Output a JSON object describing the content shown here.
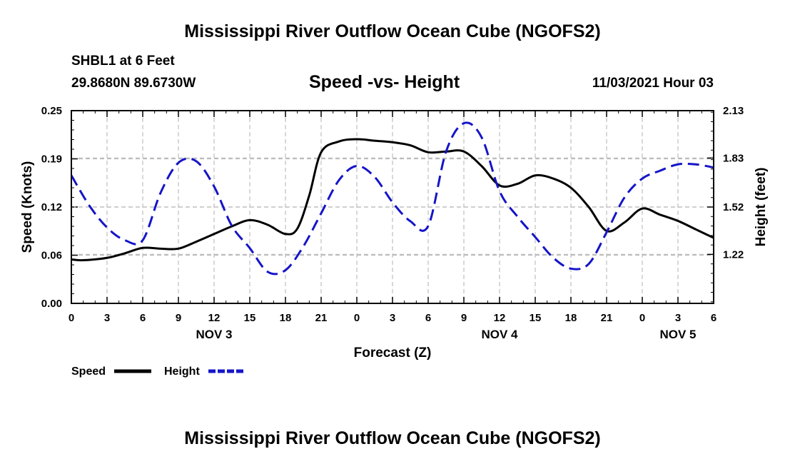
{
  "header": {
    "title": "Mississippi River Outflow Ocean Cube (NGOFS2)",
    "station": "SHBL1 at 6 Feet",
    "location": "29.8680N  89.6730W",
    "datetime": "11/03/2021 Hour 03",
    "footer_title": "Mississippi River Outflow Ocean Cube (NGOFS2)"
  },
  "chart_data": {
    "type": "line",
    "title": "Speed -vs- Height",
    "xlabel": "Forecast (Z)",
    "ylabel": "Speed (Knots)",
    "y2label": "Height (feet)",
    "x_range": [
      0,
      54
    ],
    "x_ticks": [
      0,
      3,
      6,
      9,
      12,
      15,
      18,
      21,
      24,
      27,
      30,
      33,
      36,
      39,
      42,
      45,
      48,
      51,
      54
    ],
    "x_tick_labels": [
      "0",
      "3",
      "6",
      "9",
      "12",
      "15",
      "18",
      "21",
      "0",
      "3",
      "6",
      "9",
      "12",
      "15",
      "18",
      "21",
      "0",
      "3",
      "6"
    ],
    "date_labels": [
      {
        "label": "NOV 3",
        "x": 12
      },
      {
        "label": "NOV 4",
        "x": 36
      },
      {
        "label": "NOV 5",
        "x": 51
      }
    ],
    "ylim": [
      0,
      0.25
    ],
    "y_ticks": [
      0,
      0.0625,
      0.125,
      0.1875,
      0.25
    ],
    "y_tick_labels": [
      "0.00",
      "0.06",
      "0.12",
      "0.19",
      "0.25"
    ],
    "y2lim": [
      0.91,
      2.13
    ],
    "y2_ticks": [
      1.22,
      1.52,
      1.83,
      2.13
    ],
    "y2_tick_labels": [
      "1.22",
      "1.52",
      "1.83",
      "2.13"
    ],
    "legend": [
      {
        "label": "Speed",
        "color": "#000000",
        "style": "solid"
      },
      {
        "label": "Height",
        "color": "#1515c8",
        "style": "dashed"
      }
    ],
    "series": [
      {
        "name": "Speed",
        "axis": "left",
        "color": "#000000",
        "x": [
          0,
          1,
          3,
          4.5,
          6,
          7.5,
          9,
          10.5,
          12,
          13.5,
          15,
          16.5,
          18,
          19,
          20,
          21,
          22.5,
          24,
          25.5,
          27,
          28.5,
          30,
          31.5,
          33,
          34.5,
          36,
          37.5,
          39,
          40.5,
          42,
          43.5,
          45,
          46.5,
          48,
          49.5,
          51,
          52.5,
          54
        ],
        "values": [
          0.057,
          0.056,
          0.059,
          0.065,
          0.072,
          0.071,
          0.071,
          0.08,
          0.09,
          0.1,
          0.108,
          0.102,
          0.09,
          0.097,
          0.14,
          0.196,
          0.21,
          0.213,
          0.211,
          0.209,
          0.205,
          0.196,
          0.197,
          0.197,
          0.178,
          0.153,
          0.155,
          0.166,
          0.162,
          0.15,
          0.125,
          0.094,
          0.105,
          0.123,
          0.115,
          0.107,
          0.096,
          0.085
        ]
      },
      {
        "name": "Height",
        "axis": "right",
        "color": "#1515c8",
        "x": [
          0,
          1.5,
          3,
          4.5,
          6,
          7.5,
          9,
          10.5,
          12,
          13.5,
          15,
          16.5,
          18,
          19.5,
          21,
          22.5,
          24,
          25.5,
          27,
          28.5,
          30,
          31.5,
          33,
          34.5,
          36,
          37.5,
          39,
          40.5,
          42,
          43.5,
          45,
          46.5,
          48,
          49.5,
          51,
          52.5,
          54
        ],
        "values": [
          1.72,
          1.53,
          1.39,
          1.31,
          1.31,
          1.61,
          1.8,
          1.81,
          1.65,
          1.4,
          1.26,
          1.11,
          1.12,
          1.27,
          1.48,
          1.69,
          1.78,
          1.71,
          1.55,
          1.43,
          1.4,
          1.87,
          2.05,
          1.96,
          1.62,
          1.46,
          1.33,
          1.2,
          1.13,
          1.16,
          1.36,
          1.58,
          1.7,
          1.75,
          1.79,
          1.79,
          1.77
        ]
      }
    ]
  }
}
